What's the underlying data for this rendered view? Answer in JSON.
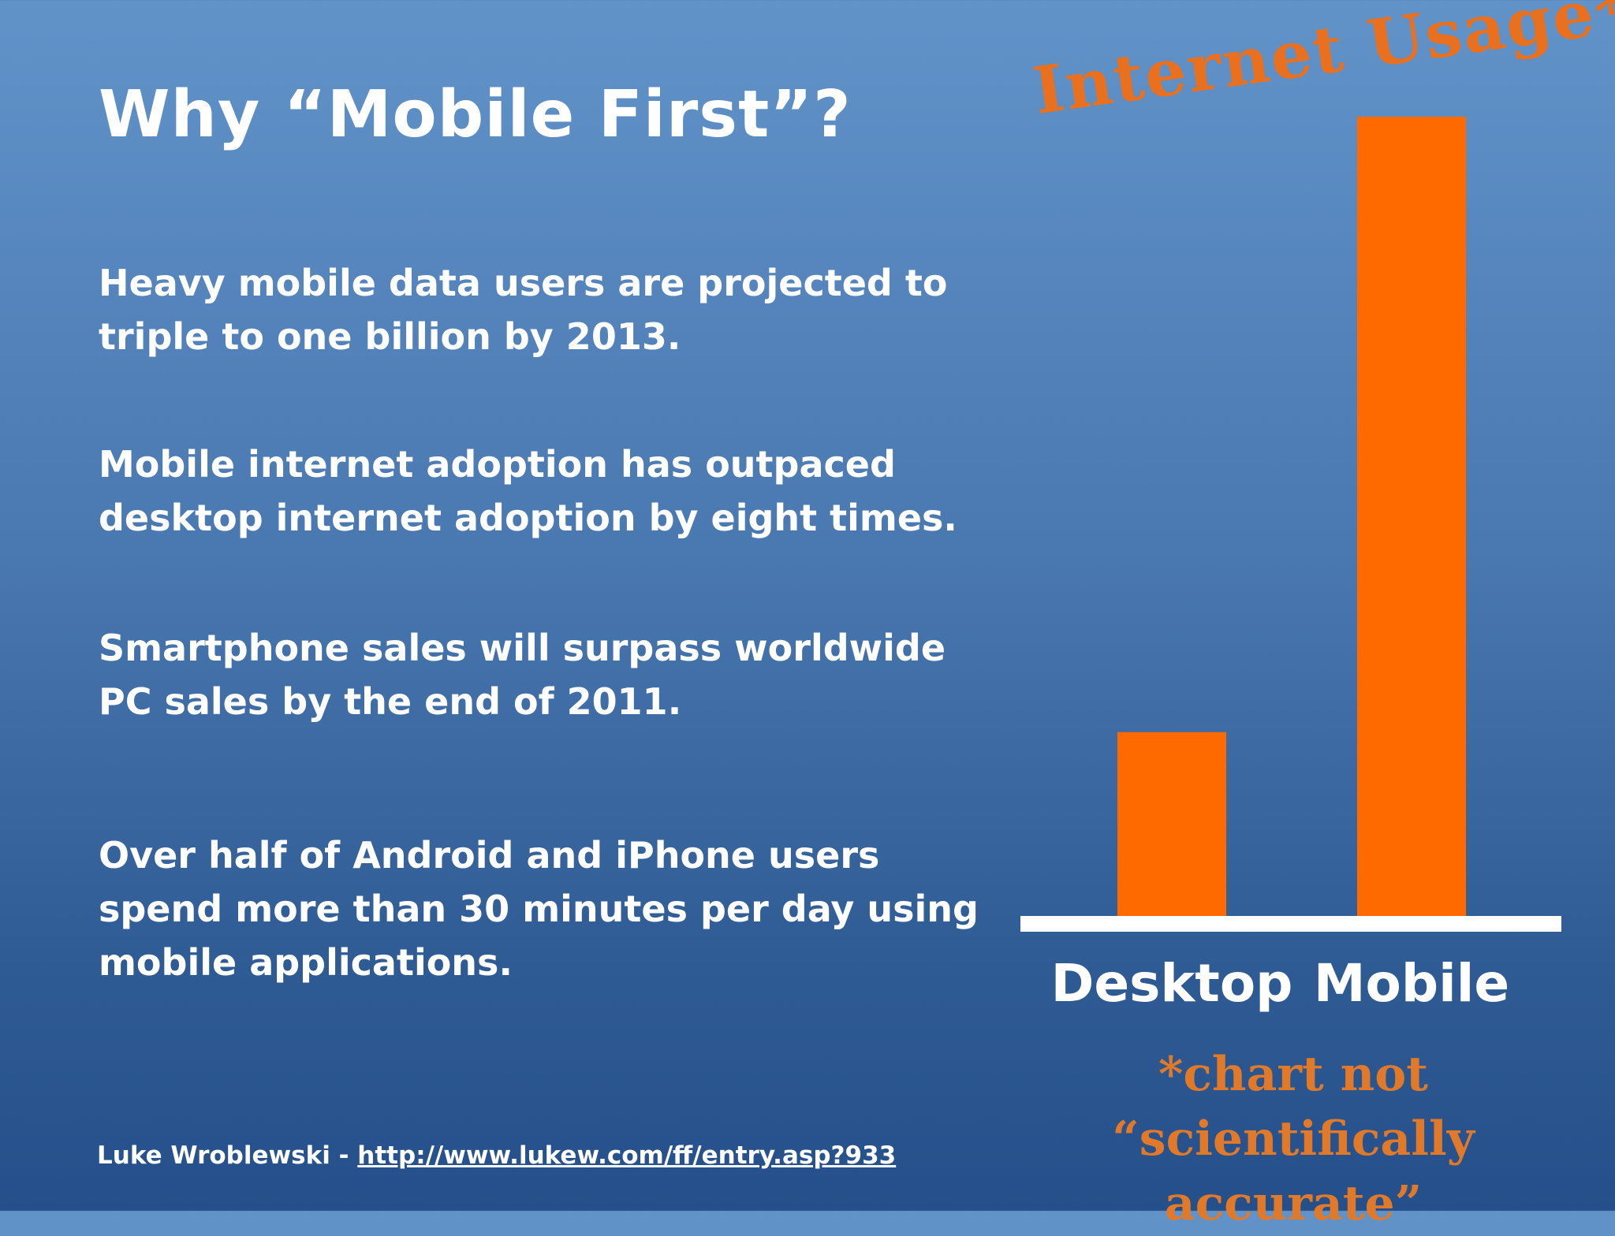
{
  "slide": {
    "title": "Why “Mobile First”?",
    "points": [
      "Heavy mobile data users are projected to triple to one billion by 2013.",
      "Mobile internet adoption has outpaced desktop internet adoption by eight times.",
      "Smartphone sales will surpass worldwide PC sales by the end of 2011.",
      "Over half of Android and iPhone users spend more than 30 minutes per day using mobile applications."
    ],
    "footer": {
      "author": "Luke Wroblewski - ",
      "link": "http://www.lukew.com/ff/entry.asp?933"
    }
  },
  "colors": {
    "bar": "#ff6a00",
    "baseline": "#ffffff",
    "annotation": "#e8701f"
  },
  "chart_data": {
    "type": "bar",
    "title": "Internet Usage*",
    "categories": [
      "Desktop",
      "Mobile"
    ],
    "values": [
      23,
      100
    ],
    "ylim": [
      0,
      100
    ],
    "grid": false,
    "note": "*chart not “scientifically accurate”"
  }
}
